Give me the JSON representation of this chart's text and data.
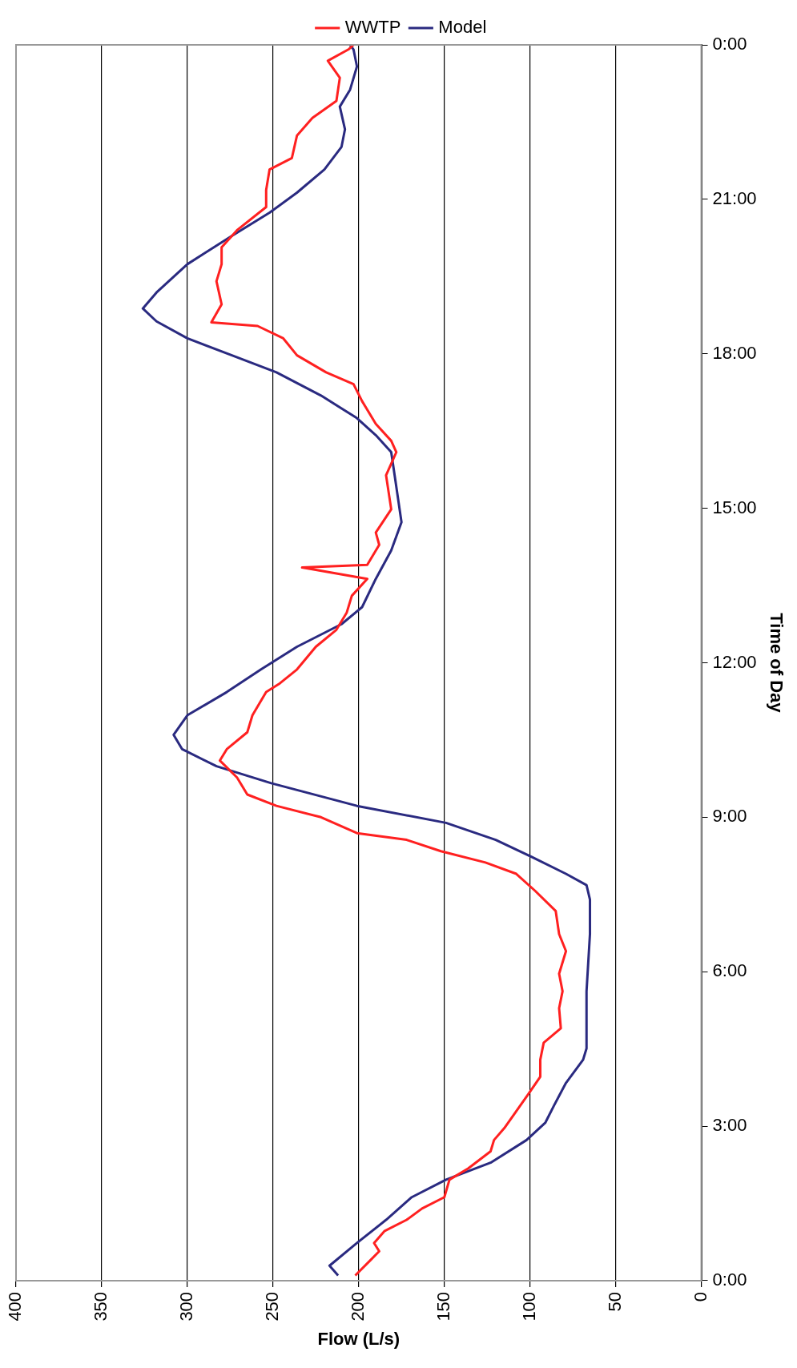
{
  "chart_data": {
    "type": "line",
    "xlabel": "Flow (L/s)",
    "ylabel": "Time of Day",
    "xlim": [
      400,
      0
    ],
    "xticks": [
      400,
      350,
      300,
      250,
      200,
      150,
      100,
      50,
      0
    ],
    "ylim": [
      0,
      24
    ],
    "yticks": [
      {
        "value": 0,
        "label": "0:00"
      },
      {
        "value": 3,
        "label": "3:00"
      },
      {
        "value": 6,
        "label": "6:00"
      },
      {
        "value": 9,
        "label": "9:00"
      },
      {
        "value": 12,
        "label": "12:00"
      },
      {
        "value": 15,
        "label": "15:00"
      },
      {
        "value": 18,
        "label": "18:00"
      },
      {
        "value": 21,
        "label": "21:00"
      },
      {
        "value": 24,
        "label": "0:00"
      }
    ],
    "grid": "x",
    "legend": "top",
    "marker": "none",
    "line_style": "solid",
    "series": [
      {
        "name": "WWTP",
        "color": "#ff2020",
        "values": [
          0.1,
          0.4,
          0.57,
          0.73,
          0.96,
          1.18,
          1.4,
          1.62,
          1.96,
          2.18,
          2.51,
          2.73,
          2.96,
          3.29,
          3.62,
          3.96,
          4.29,
          4.62,
          4.9,
          5.29,
          5.62,
          5.96,
          6.4,
          6.73,
          7.18,
          7.57,
          7.9,
          8.12,
          8.34,
          8.56,
          8.69,
          9.0,
          9.22,
          9.44,
          9.77,
          10.1,
          10.32,
          10.65,
          10.98,
          11.43,
          11.6,
          11.87,
          12.31,
          12.64,
          12.97,
          13.3,
          13.63,
          13.85,
          13.9,
          14.29,
          14.53,
          14.98,
          15.64,
          16.09,
          16.31,
          16.64,
          17.08,
          17.41,
          17.64,
          17.97,
          18.3,
          18.54,
          18.61,
          18.96,
          19.41,
          19.74,
          20.07,
          20.4,
          20.85,
          21.18,
          21.58,
          21.8,
          22.24,
          22.58,
          22.91,
          23.36,
          23.69,
          23.91,
          24
        ],
        "x": [
          202,
          193,
          188,
          191,
          185,
          172,
          163,
          150,
          147,
          136,
          123,
          121,
          115,
          108,
          101,
          94,
          94,
          92,
          82,
          83,
          81,
          83,
          79,
          83,
          85,
          97,
          108,
          126,
          152,
          172,
          201,
          222,
          248,
          265,
          271,
          281,
          277,
          265,
          262,
          254,
          246,
          236,
          225,
          213,
          207,
          204,
          195,
          233,
          195,
          188,
          190,
          181,
          184,
          178,
          181,
          190,
          198,
          203,
          219,
          236,
          244,
          259,
          286,
          280,
          283,
          280,
          280,
          271,
          254,
          254,
          252,
          239,
          236,
          227,
          213,
          211,
          218,
          206,
          203
        ]
      },
      {
        "name": "Model",
        "color": "#2a2a80",
        "values": [
          0.1,
          0.29,
          0.73,
          1.18,
          1.62,
          1.96,
          2.29,
          2.73,
          3.07,
          3.4,
          3.84,
          4.29,
          4.51,
          5.62,
          6.73,
          7.4,
          7.68,
          7.9,
          8.23,
          8.56,
          8.89,
          9.22,
          9.66,
          9.99,
          10.32,
          10.6,
          10.98,
          11.43,
          11.87,
          12.31,
          12.75,
          13.08,
          13.63,
          14.18,
          14.73,
          15.64,
          16.09,
          16.42,
          16.75,
          17.19,
          17.64,
          17.97,
          18.3,
          18.63,
          18.88,
          19.19,
          19.74,
          20.29,
          20.74,
          21.13,
          21.58,
          22.02,
          22.36,
          22.8,
          23.13,
          23.58,
          23.91,
          24
        ],
        "x": [
          212,
          217,
          201,
          184,
          169,
          149,
          123,
          102,
          91,
          86,
          79,
          69,
          67,
          67,
          65,
          65,
          67,
          79,
          99,
          120,
          149,
          201,
          251,
          283,
          303,
          308,
          300,
          277,
          257,
          236,
          210,
          198,
          190,
          181,
          175,
          179,
          181,
          190,
          201,
          222,
          248,
          274,
          300,
          318,
          326,
          318,
          300,
          274,
          252,
          236,
          220,
          210,
          208,
          211,
          205,
          201,
          203,
          205
        ]
      }
    ]
  }
}
